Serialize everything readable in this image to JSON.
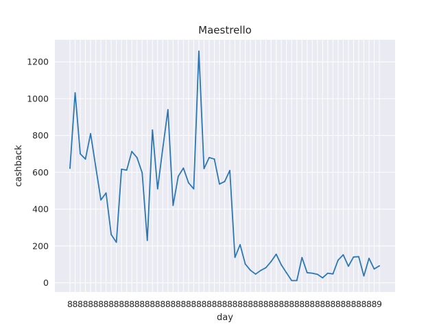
{
  "chart_data": {
    "type": "line",
    "title": "Maestrello",
    "xlabel": "day",
    "ylabel": "cashback",
    "ylim": [
      -50,
      1320
    ],
    "yticks": [
      0,
      200,
      400,
      600,
      800,
      1000,
      1200
    ],
    "grid": true,
    "line_color": "#2a77b4",
    "background_color": "#eaeaf2",
    "x": [
      "8",
      "8",
      "8",
      "8",
      "8",
      "8",
      "8",
      "8",
      "8",
      "8",
      "8",
      "8",
      "8",
      "8",
      "8",
      "8",
      "8",
      "8",
      "8",
      "8",
      "8",
      "8",
      "8",
      "8",
      "8",
      "8",
      "8",
      "8",
      "8",
      "8",
      "8",
      "8",
      "8",
      "8",
      "8",
      "8",
      "8",
      "8",
      "8",
      "8",
      "8",
      "8",
      "8",
      "8",
      "8",
      "8",
      "8",
      "8",
      "8",
      "8",
      "8",
      "8",
      "8",
      "8",
      "8",
      "8",
      "8",
      "8",
      "8",
      "8",
      "9"
    ],
    "series": [
      {
        "values": [
          622,
          1032,
          700,
          672,
          810,
          630,
          450,
          488,
          262,
          220,
          617,
          612,
          713,
          680,
          598,
          230,
          830,
          510,
          730,
          940,
          420,
          578,
          623,
          543,
          510,
          1258,
          620,
          680,
          672,
          536,
          550,
          610,
          138,
          207,
          102,
          68,
          47,
          67,
          82,
          115,
          155,
          97,
          54,
          12,
          12,
          137,
          55,
          52,
          46,
          27,
          52,
          48,
          123,
          152,
          90,
          140,
          142,
          37,
          133,
          75,
          92
        ]
      }
    ]
  }
}
